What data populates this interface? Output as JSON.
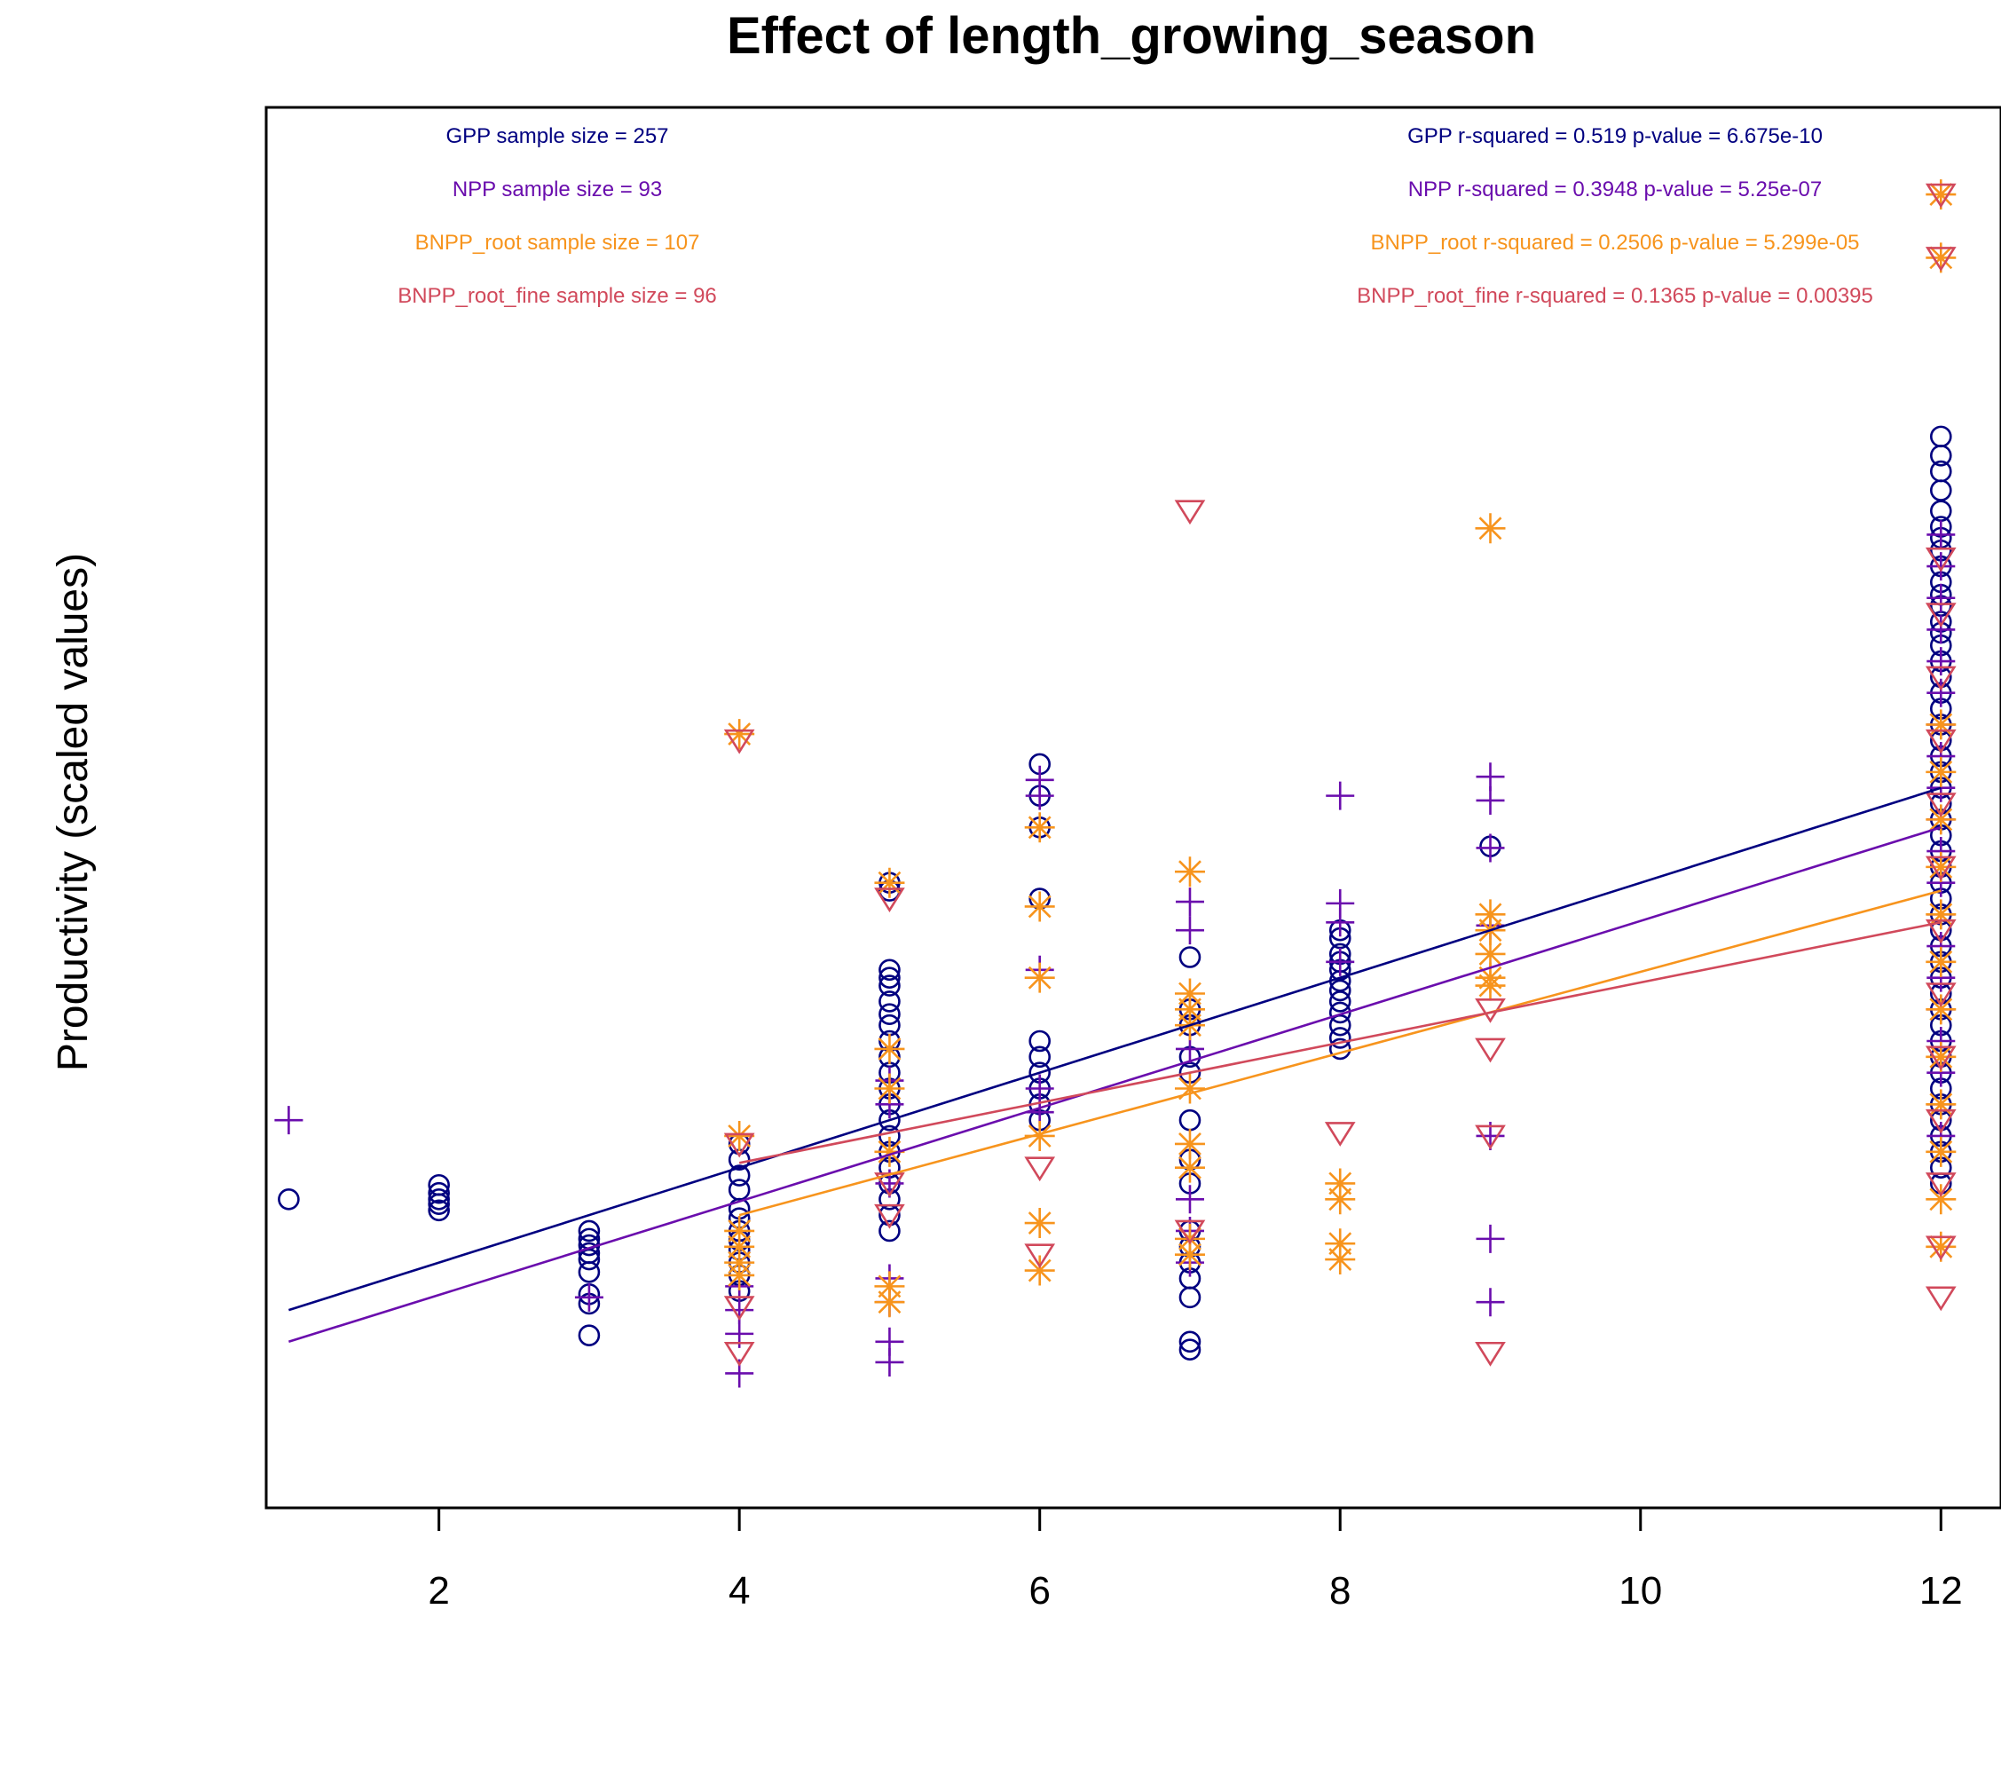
{
  "chart_data": {
    "type": "scatter",
    "title": "Effect of length_growing_season",
    "xlabel": "",
    "ylabel": "Productivity (scaled values)",
    "xlim": [
      0.85,
      12.4
    ],
    "ylim": [
      -2.35,
      6.5
    ],
    "xticks": [
      2,
      4,
      6,
      8,
      10,
      12
    ],
    "yticks": [],
    "grid": false,
    "colors": {
      "GPP": "#000080",
      "NPP": "#6A0DAD",
      "BNPP_root": "#F7941D",
      "BNPP_root_fine": "#D1495B",
      "axis": "#000000"
    },
    "annotations_left": [
      {
        "series": "GPP",
        "text": "GPP sample size = 257"
      },
      {
        "series": "NPP",
        "text": "NPP sample size = 93"
      },
      {
        "series": "BNPP_root",
        "text": "BNPP_root sample size = 107"
      },
      {
        "series": "BNPP_root_fine",
        "text": "BNPP_root_fine sample size = 96"
      }
    ],
    "annotations_right": [
      {
        "series": "GPP",
        "text": "GPP r-squared =  0.519 p-value =  6.675e-10"
      },
      {
        "series": "NPP",
        "text": "NPP r-squared =  0.3948 p-value =  5.25e-07"
      },
      {
        "series": "BNPP_root",
        "text": "BNPP_root r-squared =  0.2506 p-value =  5.299e-05"
      },
      {
        "series": "BNPP_root_fine",
        "text": "BNPP_root_fine r-squared =  0.1365 p-value =  0.00395"
      }
    ],
    "series": [
      {
        "name": "GPP",
        "marker": "circle",
        "regression": {
          "x": [
            1,
            12
          ],
          "y": [
            -1.1,
            2.2
          ]
        },
        "points": [
          [
            1,
            -0.4
          ],
          [
            2,
            -0.31
          ],
          [
            2,
            -0.36
          ],
          [
            2,
            -0.4
          ],
          [
            2,
            -0.43
          ],
          [
            2,
            -0.47
          ],
          [
            3,
            -0.6
          ],
          [
            3,
            -0.65
          ],
          [
            3,
            -0.69
          ],
          [
            3,
            -0.74
          ],
          [
            3,
            -0.78
          ],
          [
            3,
            -0.86
          ],
          [
            3,
            -1.0
          ],
          [
            3,
            -1.06
          ],
          [
            3,
            -1.26
          ],
          [
            4,
            -0.05
          ],
          [
            4,
            -0.15
          ],
          [
            4,
            -0.25
          ],
          [
            4,
            -0.34
          ],
          [
            4,
            -0.46
          ],
          [
            4,
            -0.52
          ],
          [
            4,
            -0.6
          ],
          [
            4,
            -0.66
          ],
          [
            4,
            -0.72
          ],
          [
            4,
            -0.8
          ],
          [
            4,
            -0.88
          ],
          [
            4,
            -0.98
          ],
          [
            5,
            1.6
          ],
          [
            5,
            1.55
          ],
          [
            5,
            1.05
          ],
          [
            5,
            1.0
          ],
          [
            5,
            0.95
          ],
          [
            5,
            0.85
          ],
          [
            5,
            0.77
          ],
          [
            5,
            0.7
          ],
          [
            5,
            0.6
          ],
          [
            5,
            0.5
          ],
          [
            5,
            0.4
          ],
          [
            5,
            0.3
          ],
          [
            5,
            0.2
          ],
          [
            5,
            0.1
          ],
          [
            5,
            0.0
          ],
          [
            5,
            -0.1
          ],
          [
            5,
            -0.2
          ],
          [
            5,
            -0.3
          ],
          [
            5,
            -0.4
          ],
          [
            5,
            -0.5
          ],
          [
            5,
            -0.6
          ],
          [
            6,
            2.35
          ],
          [
            6,
            2.15
          ],
          [
            6,
            1.95
          ],
          [
            6,
            1.5
          ],
          [
            6,
            0.6
          ],
          [
            6,
            0.5
          ],
          [
            6,
            0.4
          ],
          [
            6,
            0.3
          ],
          [
            6,
            0.2
          ],
          [
            6,
            0.1
          ],
          [
            7,
            1.13
          ],
          [
            7,
            0.8
          ],
          [
            7,
            0.7
          ],
          [
            7,
            0.5
          ],
          [
            7,
            0.4
          ],
          [
            7,
            0.1
          ],
          [
            7,
            -0.15
          ],
          [
            7,
            -0.3
          ],
          [
            7,
            -0.6
          ],
          [
            7,
            -0.7
          ],
          [
            7,
            -0.8
          ],
          [
            7,
            -0.9
          ],
          [
            7,
            -1.02
          ],
          [
            7,
            -1.3
          ],
          [
            7,
            -1.35
          ],
          [
            8,
            1.3
          ],
          [
            8,
            1.25
          ],
          [
            8,
            1.15
          ],
          [
            8,
            1.1
          ],
          [
            8,
            1.05
          ],
          [
            8,
            0.98
          ],
          [
            8,
            0.92
          ],
          [
            8,
            0.85
          ],
          [
            8,
            0.78
          ],
          [
            8,
            0.7
          ],
          [
            8,
            0.62
          ],
          [
            8,
            0.55
          ],
          [
            9,
            1.83
          ],
          [
            12,
            4.42
          ],
          [
            12,
            4.3
          ],
          [
            12,
            4.2
          ],
          [
            12,
            4.08
          ],
          [
            12,
            3.95
          ],
          [
            12,
            3.85
          ],
          [
            12,
            3.78
          ],
          [
            12,
            3.7
          ],
          [
            12,
            3.6
          ],
          [
            12,
            3.5
          ],
          [
            12,
            3.42
          ],
          [
            12,
            3.35
          ],
          [
            12,
            3.25
          ],
          [
            12,
            3.18
          ],
          [
            12,
            3.1
          ],
          [
            12,
            3.0
          ],
          [
            12,
            2.9
          ],
          [
            12,
            2.8
          ],
          [
            12,
            2.7
          ],
          [
            12,
            2.6
          ],
          [
            12,
            2.5
          ],
          [
            12,
            2.4
          ],
          [
            12,
            2.3
          ],
          [
            12,
            2.2
          ],
          [
            12,
            2.1
          ],
          [
            12,
            2.0
          ],
          [
            12,
            1.9
          ],
          [
            12,
            1.8
          ],
          [
            12,
            1.7
          ],
          [
            12,
            1.6
          ],
          [
            12,
            1.5
          ],
          [
            12,
            1.4
          ],
          [
            12,
            1.3
          ],
          [
            12,
            1.2
          ],
          [
            12,
            1.1
          ],
          [
            12,
            1.0
          ],
          [
            12,
            0.9
          ],
          [
            12,
            0.8
          ],
          [
            12,
            0.7
          ],
          [
            12,
            0.6
          ],
          [
            12,
            0.5
          ],
          [
            12,
            0.4
          ],
          [
            12,
            0.3
          ],
          [
            12,
            0.2
          ],
          [
            12,
            0.1
          ],
          [
            12,
            0.0
          ],
          [
            12,
            -0.1
          ],
          [
            12,
            -0.2
          ],
          [
            12,
            -0.3
          ]
        ]
      },
      {
        "name": "NPP",
        "marker": "plus",
        "regression": {
          "x": [
            1,
            12
          ],
          "y": [
            -1.3,
            1.95
          ]
        },
        "points": [
          [
            1,
            0.1
          ],
          [
            3,
            -1.02
          ],
          [
            4,
            -0.95
          ],
          [
            4,
            -1.1
          ],
          [
            4,
            -1.25
          ],
          [
            4,
            -1.5
          ],
          [
            5,
            0.35
          ],
          [
            5,
            0.2
          ],
          [
            5,
            -0.3
          ],
          [
            5,
            -0.9
          ],
          [
            5,
            -1.05
          ],
          [
            5,
            -1.3
          ],
          [
            5,
            -1.43
          ],
          [
            6,
            2.25
          ],
          [
            6,
            2.15
          ],
          [
            6,
            1.05
          ],
          [
            6,
            0.3
          ],
          [
            6,
            0.15
          ],
          [
            7,
            1.48
          ],
          [
            7,
            1.3
          ],
          [
            7,
            0.55
          ],
          [
            7,
            -0.4
          ],
          [
            7,
            -0.6
          ],
          [
            7,
            -0.8
          ],
          [
            8,
            2.15
          ],
          [
            8,
            1.47
          ],
          [
            8,
            1.35
          ],
          [
            8,
            1.1
          ],
          [
            9,
            2.27
          ],
          [
            9,
            2.12
          ],
          [
            9,
            1.82
          ],
          [
            9,
            1.33
          ],
          [
            9,
            0.0
          ],
          [
            9,
            -0.65
          ],
          [
            9,
            -1.05
          ],
          [
            12,
            3.8
          ],
          [
            12,
            3.6
          ],
          [
            12,
            3.4
          ],
          [
            12,
            3.2
          ],
          [
            12,
            3.0
          ],
          [
            12,
            2.8
          ],
          [
            12,
            2.6
          ],
          [
            12,
            2.4
          ],
          [
            12,
            2.2
          ],
          [
            12,
            2.0
          ],
          [
            12,
            1.8
          ],
          [
            12,
            1.6
          ],
          [
            12,
            1.4
          ],
          [
            12,
            1.2
          ],
          [
            12,
            1.0
          ],
          [
            12,
            0.8
          ],
          [
            12,
            0.6
          ],
          [
            12,
            0.4
          ],
          [
            12,
            0.2
          ],
          [
            12,
            0.0
          ]
        ]
      },
      {
        "name": "BNPP_root",
        "marker": "asterisk",
        "regression": {
          "x": [
            4,
            12
          ],
          "y": [
            -0.5,
            1.55
          ]
        },
        "points": [
          [
            4,
            2.54
          ],
          [
            4,
            0.0
          ],
          [
            4,
            -0.6
          ],
          [
            4,
            -0.7
          ],
          [
            4,
            -0.8
          ],
          [
            4,
            -0.88
          ],
          [
            5,
            1.6
          ],
          [
            5,
            0.55
          ],
          [
            5,
            0.3
          ],
          [
            5,
            -0.1
          ],
          [
            5,
            -0.95
          ],
          [
            5,
            -1.05
          ],
          [
            6,
            1.95
          ],
          [
            6,
            1.45
          ],
          [
            6,
            1.0
          ],
          [
            6,
            0.0
          ],
          [
            6,
            -0.55
          ],
          [
            6,
            -0.85
          ],
          [
            7,
            1.67
          ],
          [
            7,
            0.9
          ],
          [
            7,
            0.8
          ],
          [
            7,
            0.7
          ],
          [
            7,
            0.3
          ],
          [
            7,
            -0.05
          ],
          [
            7,
            -0.2
          ],
          [
            7,
            -0.65
          ],
          [
            7,
            -0.75
          ],
          [
            8,
            -0.3
          ],
          [
            8,
            -0.4
          ],
          [
            8,
            -0.68
          ],
          [
            8,
            -0.78
          ],
          [
            9,
            3.84
          ],
          [
            9,
            1.4
          ],
          [
            9,
            1.3
          ],
          [
            9,
            1.15
          ],
          [
            9,
            1.0
          ],
          [
            9,
            0.95
          ],
          [
            12,
            5.95
          ],
          [
            12,
            5.55
          ],
          [
            12,
            2.6
          ],
          [
            12,
            2.3
          ],
          [
            12,
            2.0
          ],
          [
            12,
            1.7
          ],
          [
            12,
            1.4
          ],
          [
            12,
            1.1
          ],
          [
            12,
            0.8
          ],
          [
            12,
            0.5
          ],
          [
            12,
            0.2
          ],
          [
            12,
            -0.1
          ],
          [
            12,
            -0.4
          ],
          [
            12,
            -0.7
          ]
        ]
      },
      {
        "name": "BNPP_root_fine",
        "marker": "triangle-down",
        "regression": {
          "x": [
            4,
            12
          ],
          "y": [
            -0.17,
            1.35
          ]
        },
        "points": [
          [
            4,
            2.5
          ],
          [
            4,
            -0.05
          ],
          [
            4,
            -1.08
          ],
          [
            4,
            -1.37
          ],
          [
            5,
            1.5
          ],
          [
            5,
            -0.3
          ],
          [
            5,
            -0.5
          ],
          [
            6,
            -0.2
          ],
          [
            6,
            -0.75
          ],
          [
            7,
            3.95
          ],
          [
            7,
            -0.6
          ],
          [
            8,
            0.02
          ],
          [
            9,
            0.8
          ],
          [
            9,
            0.55
          ],
          [
            9,
            0.0
          ],
          [
            9,
            -1.37
          ],
          [
            12,
            5.95
          ],
          [
            12,
            5.55
          ],
          [
            12,
            3.65
          ],
          [
            12,
            3.3
          ],
          [
            12,
            2.9
          ],
          [
            12,
            2.5
          ],
          [
            12,
            2.1
          ],
          [
            12,
            1.7
          ],
          [
            12,
            1.3
          ],
          [
            12,
            0.9
          ],
          [
            12,
            0.5
          ],
          [
            12,
            0.1
          ],
          [
            12,
            -0.3
          ],
          [
            12,
            -0.7
          ],
          [
            12,
            -1.02
          ]
        ]
      }
    ]
  }
}
